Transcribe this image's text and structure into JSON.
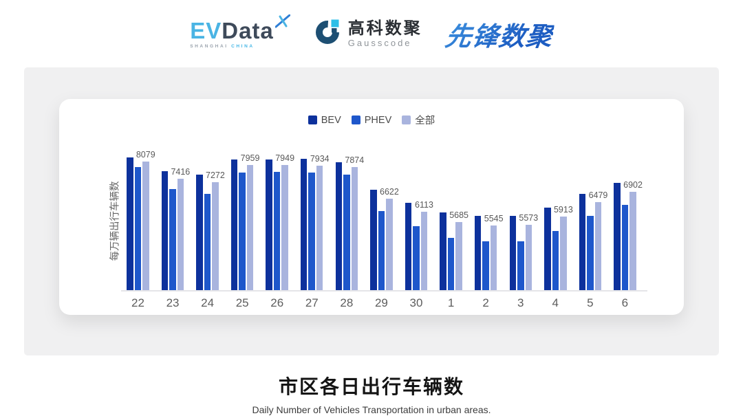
{
  "header": {
    "evdata": {
      "ev": "EV",
      "data": "Data",
      "sub_left": "SHANGHAI",
      "sub_right": "CHINA"
    },
    "gausscode": {
      "cn": "高科数聚",
      "en": "Gausscode"
    },
    "xianfeng": {
      "text": "先锋数聚"
    }
  },
  "chart_data": {
    "type": "bar",
    "title": "市区各日出行车辆数",
    "subtitle": "Daily Number of Vehicles Transportation in urban areas.",
    "ylabel": "每万辆出行车辆数",
    "categories": [
      "22",
      "23",
      "24",
      "25",
      "26",
      "27",
      "28",
      "29",
      "30",
      "1",
      "2",
      "3",
      "4",
      "5",
      "6"
    ],
    "series": [
      {
        "name": "BEV",
        "key": "bev",
        "color": "#0d319c",
        "labeled": false,
        "values": [
          8240,
          7700,
          7565,
          8170,
          8170,
          8185,
          8060,
          6965,
          6450,
          6070,
          5925,
          5950,
          6250,
          6815,
          7240
        ]
      },
      {
        "name": "PHEV",
        "key": "phev",
        "color": "#1e57cb",
        "labeled": false,
        "values": [
          7870,
          6995,
          6815,
          7645,
          7670,
          7645,
          7580,
          6135,
          5525,
          5065,
          4930,
          4930,
          5345,
          5935,
          6380
        ]
      },
      {
        "name": "全部",
        "key": "all",
        "color": "#a9b4de",
        "labeled": true,
        "values": [
          8079,
          7416,
          7272,
          7959,
          7949,
          7934,
          7874,
          6622,
          6113,
          5685,
          5545,
          5573,
          5913,
          6479,
          6902
        ]
      }
    ],
    "ylim": [
      3000,
      8600
    ],
    "legend_position": "top",
    "grid": false,
    "value_labels_series": "全部",
    "note_labeled_values_are_shown_on_chart": true
  },
  "footer": {
    "title": "市区各日出行车辆数",
    "subtitle": "Daily Number of Vehicles Transportation in urban areas."
  },
  "colors": {
    "panel_bg": "#f0f0f1",
    "card_bg": "#ffffff",
    "baseline": "#e5e5e8",
    "bev": "#0d319c",
    "phev": "#1e57cb",
    "all": "#a9b4de"
  }
}
